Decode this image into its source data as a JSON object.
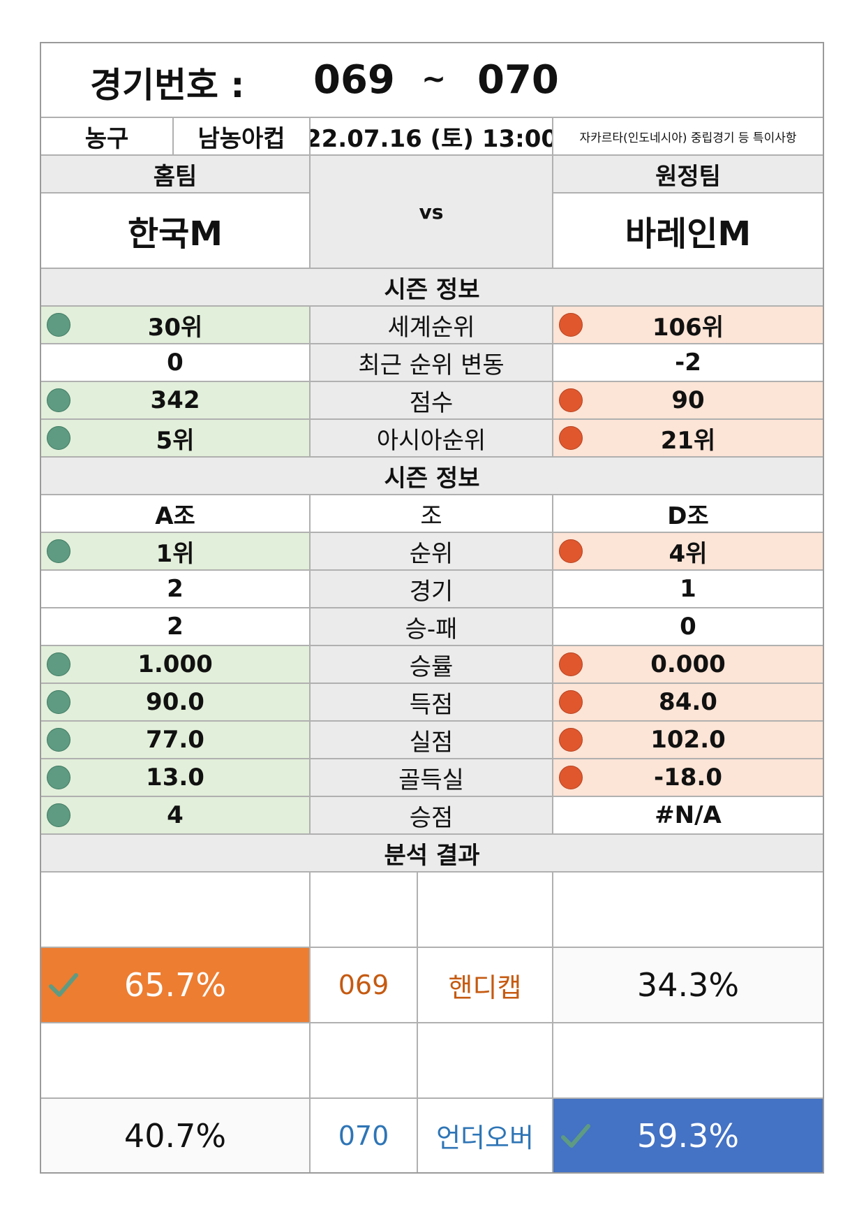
{
  "header": {
    "label": "경기번호 :",
    "match_from": "069",
    "separator": "~",
    "match_to": "070"
  },
  "info": {
    "sport": "농구",
    "league": "남농아컵",
    "datetime": "22.07.16 (토) 13:00",
    "note": "자카르타(인도네시아) 중립경기 등 특이사항"
  },
  "teams": {
    "home_label": "홈팀",
    "away_label": "원정팀",
    "home_name": "한국M",
    "vs": "vs",
    "away_name": "바레인M"
  },
  "season1": {
    "title": "시즌 정보",
    "rows": [
      {
        "home": "30위",
        "label": "세계순위",
        "away": "106위",
        "style": "compare"
      },
      {
        "home": "0",
        "label": "최근 순위 변동",
        "away": "-2",
        "style": "plain"
      },
      {
        "home": "342",
        "label": "점수",
        "away": "90",
        "style": "compare"
      },
      {
        "home": "5위",
        "label": "아시아순위",
        "away": "21위",
        "style": "compare"
      }
    ]
  },
  "season2": {
    "title": "시즌 정보",
    "group_row": {
      "home": "A조",
      "label": "조",
      "away": "D조"
    },
    "rows": [
      {
        "home": "1위",
        "label": "순위",
        "away": "4위",
        "style": "compare"
      },
      {
        "home": "2",
        "label": "경기",
        "away": "1",
        "style": "plain"
      },
      {
        "home": "2",
        "label": "승-패",
        "away": "0",
        "style": "plain"
      },
      {
        "home": "1.000",
        "label": "승률",
        "away": "0.000",
        "style": "compare"
      },
      {
        "home": "90.0",
        "label": "득점",
        "away": "84.0",
        "style": "compare"
      },
      {
        "home": "77.0",
        "label": "실점",
        "away": "102.0",
        "style": "compare"
      },
      {
        "home": "13.0",
        "label": "골득실",
        "away": "-18.0",
        "style": "compare"
      },
      {
        "home": "4",
        "label": "승점",
        "away": "#N/A",
        "style": "home_only"
      }
    ]
  },
  "analysis": {
    "title": "분석 결과",
    "handicap": {
      "home_pct": "65.7%",
      "code": "069",
      "type": "핸디캡",
      "away_pct": "34.3%",
      "selected": "home"
    },
    "underover": {
      "home_pct": "40.7%",
      "code": "070",
      "type": "언더오버",
      "away_pct": "59.3%",
      "selected": "away"
    }
  },
  "colors": {
    "home_dot": "#5e9b82",
    "away_dot": "#e0572e",
    "home_fill": "#e2efda",
    "away_fill": "#fce4d6",
    "handicap_selected": "#ed7d31",
    "handicap_text": "#c55a11",
    "underover_selected": "#4472c4",
    "underover_text": "#2e75b6"
  }
}
